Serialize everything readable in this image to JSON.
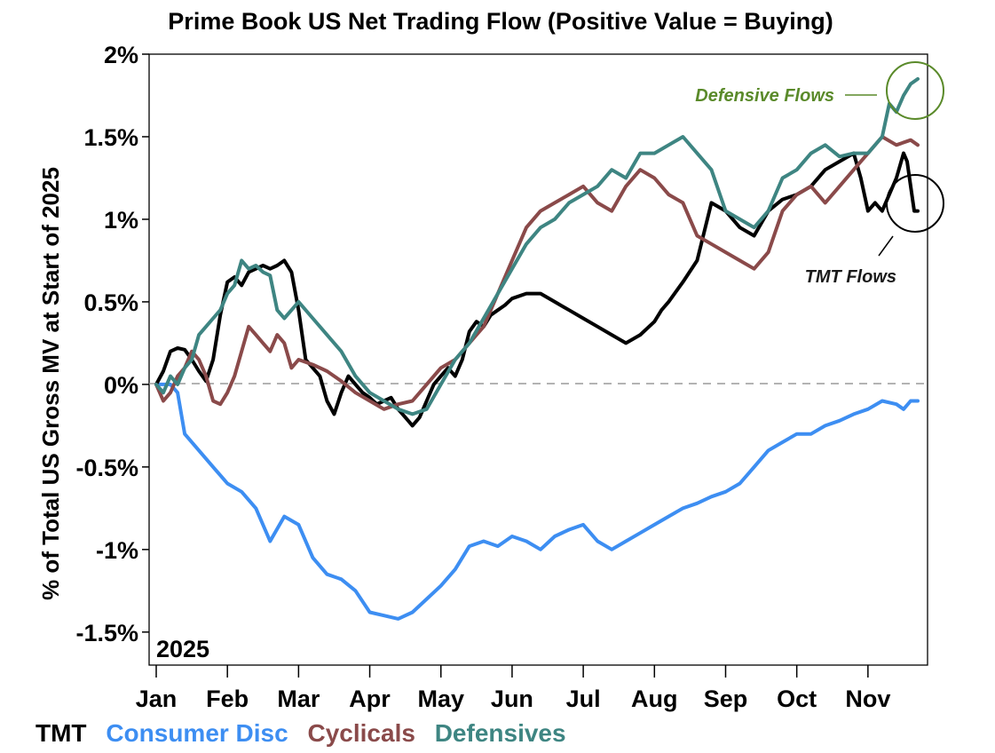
{
  "chart_data": {
    "type": "line",
    "title": "Prime Book US Net Trading Flow (Positive Value = Buying)",
    "ylabel": "% of Total US Gross MV at Start of 2025",
    "xlabel": "",
    "year_label": "2025",
    "categories": [
      "Jan",
      "Feb",
      "Mar",
      "Apr",
      "May",
      "Jun",
      "Jul",
      "Aug",
      "Sep",
      "Oct",
      "Nov"
    ],
    "x_range": [
      0,
      10.75
    ],
    "ylim": [
      -1.7,
      2.0
    ],
    "y_ticks": [
      2,
      1.5,
      1,
      0.5,
      0,
      -0.5,
      -1,
      -1.5
    ],
    "y_tick_labels": [
      "2%",
      "1.5%",
      "1%",
      "0.5%",
      "0%",
      "-0.5%",
      "-1%",
      "-1.5%"
    ],
    "zero_line": true,
    "series": [
      {
        "name": "TMT",
        "color": "#000000",
        "x": [
          0.0,
          0.1,
          0.2,
          0.3,
          0.4,
          0.5,
          0.6,
          0.7,
          0.8,
          0.9,
          1.0,
          1.1,
          1.2,
          1.3,
          1.4,
          1.5,
          1.6,
          1.7,
          1.8,
          1.9,
          2.0,
          2.1,
          2.2,
          2.3,
          2.4,
          2.5,
          2.6,
          2.7,
          2.8,
          2.9,
          3.0,
          3.1,
          3.2,
          3.3,
          3.4,
          3.5,
          3.6,
          3.7,
          3.8,
          3.9,
          4.0,
          4.1,
          4.2,
          4.3,
          4.4,
          4.5,
          4.6,
          4.7,
          4.8,
          4.9,
          5.0,
          5.2,
          5.4,
          5.6,
          5.8,
          6.0,
          6.2,
          6.4,
          6.6,
          6.8,
          7.0,
          7.1,
          7.2,
          7.4,
          7.6,
          7.8,
          8.0,
          8.2,
          8.4,
          8.6,
          8.8,
          9.0,
          9.2,
          9.4,
          9.6,
          9.8,
          9.9,
          10.0,
          10.1,
          10.2,
          10.3,
          10.4,
          10.5,
          10.55,
          10.6,
          10.65,
          10.7
        ],
        "values": [
          0.0,
          0.08,
          0.2,
          0.22,
          0.21,
          0.15,
          0.08,
          0.02,
          0.15,
          0.42,
          0.62,
          0.65,
          0.6,
          0.68,
          0.7,
          0.72,
          0.7,
          0.72,
          0.75,
          0.68,
          0.45,
          0.15,
          0.1,
          0.05,
          -0.1,
          -0.18,
          -0.05,
          0.05,
          0.0,
          -0.05,
          -0.08,
          -0.12,
          -0.1,
          -0.08,
          -0.15,
          -0.2,
          -0.25,
          -0.2,
          -0.1,
          0.0,
          0.05,
          0.1,
          0.05,
          0.15,
          0.32,
          0.38,
          0.35,
          0.42,
          0.45,
          0.48,
          0.52,
          0.55,
          0.55,
          0.5,
          0.45,
          0.4,
          0.35,
          0.3,
          0.25,
          0.3,
          0.38,
          0.45,
          0.5,
          0.62,
          0.75,
          1.1,
          1.05,
          0.95,
          0.9,
          1.05,
          1.12,
          1.15,
          1.2,
          1.3,
          1.35,
          1.4,
          1.25,
          1.05,
          1.1,
          1.05,
          1.15,
          1.25,
          1.4,
          1.35,
          1.2,
          1.05,
          1.05
        ]
      },
      {
        "name": "Consumer Disc",
        "color": "#3d8ef2",
        "x": [
          0.0,
          0.1,
          0.2,
          0.3,
          0.4,
          0.6,
          0.8,
          1.0,
          1.2,
          1.4,
          1.6,
          1.8,
          2.0,
          2.2,
          2.4,
          2.6,
          2.8,
          3.0,
          3.2,
          3.4,
          3.6,
          3.8,
          4.0,
          4.2,
          4.4,
          4.6,
          4.8,
          5.0,
          5.2,
          5.4,
          5.6,
          5.8,
          6.0,
          6.2,
          6.4,
          6.6,
          6.8,
          7.0,
          7.2,
          7.4,
          7.6,
          7.8,
          8.0,
          8.2,
          8.4,
          8.6,
          8.8,
          9.0,
          9.2,
          9.4,
          9.6,
          9.8,
          10.0,
          10.2,
          10.4,
          10.5,
          10.6,
          10.7
        ],
        "values": [
          0.0,
          0.0,
          0.0,
          -0.05,
          -0.3,
          -0.4,
          -0.5,
          -0.6,
          -0.65,
          -0.75,
          -0.95,
          -0.8,
          -0.85,
          -1.05,
          -1.15,
          -1.18,
          -1.25,
          -1.38,
          -1.4,
          -1.42,
          -1.38,
          -1.3,
          -1.22,
          -1.12,
          -0.98,
          -0.95,
          -0.98,
          -0.92,
          -0.95,
          -1.0,
          -0.92,
          -0.88,
          -0.85,
          -0.95,
          -1.0,
          -0.95,
          -0.9,
          -0.85,
          -0.8,
          -0.75,
          -0.72,
          -0.68,
          -0.65,
          -0.6,
          -0.5,
          -0.4,
          -0.35,
          -0.3,
          -0.3,
          -0.25,
          -0.22,
          -0.18,
          -0.15,
          -0.1,
          -0.12,
          -0.15,
          -0.1,
          -0.1
        ]
      },
      {
        "name": "Cyclicals",
        "color": "#8a4a4a",
        "x": [
          0.0,
          0.1,
          0.2,
          0.3,
          0.4,
          0.5,
          0.6,
          0.7,
          0.8,
          0.9,
          1.0,
          1.1,
          1.2,
          1.3,
          1.4,
          1.5,
          1.6,
          1.7,
          1.8,
          1.9,
          2.0,
          2.2,
          2.4,
          2.6,
          2.8,
          3.0,
          3.2,
          3.4,
          3.6,
          3.8,
          4.0,
          4.2,
          4.4,
          4.6,
          4.8,
          5.0,
          5.2,
          5.4,
          5.6,
          5.8,
          6.0,
          6.2,
          6.4,
          6.6,
          6.8,
          7.0,
          7.2,
          7.4,
          7.6,
          7.8,
          8.0,
          8.2,
          8.4,
          8.6,
          8.8,
          9.0,
          9.2,
          9.4,
          9.6,
          9.8,
          10.0,
          10.2,
          10.4,
          10.6,
          10.7
        ],
        "values": [
          0.0,
          -0.1,
          -0.05,
          0.05,
          0.1,
          0.2,
          0.15,
          0.05,
          -0.1,
          -0.12,
          -0.05,
          0.05,
          0.2,
          0.35,
          0.3,
          0.25,
          0.2,
          0.3,
          0.25,
          0.1,
          0.15,
          0.12,
          0.08,
          0.02,
          -0.05,
          -0.1,
          -0.15,
          -0.12,
          -0.1,
          0.0,
          0.1,
          0.15,
          0.25,
          0.35,
          0.55,
          0.75,
          0.95,
          1.05,
          1.1,
          1.15,
          1.2,
          1.1,
          1.05,
          1.2,
          1.3,
          1.25,
          1.15,
          1.1,
          0.9,
          0.85,
          0.8,
          0.75,
          0.7,
          0.8,
          1.05,
          1.15,
          1.2,
          1.1,
          1.2,
          1.3,
          1.4,
          1.5,
          1.45,
          1.48,
          1.45
        ]
      },
      {
        "name": "Defensives",
        "color": "#3e8582",
        "x": [
          0.0,
          0.1,
          0.2,
          0.3,
          0.4,
          0.5,
          0.6,
          0.7,
          0.8,
          0.9,
          1.0,
          1.1,
          1.2,
          1.3,
          1.4,
          1.5,
          1.6,
          1.7,
          1.8,
          1.9,
          2.0,
          2.2,
          2.4,
          2.6,
          2.8,
          3.0,
          3.2,
          3.4,
          3.6,
          3.8,
          4.0,
          4.2,
          4.4,
          4.6,
          4.8,
          5.0,
          5.2,
          5.4,
          5.6,
          5.8,
          6.0,
          6.2,
          6.4,
          6.6,
          6.8,
          7.0,
          7.2,
          7.4,
          7.6,
          7.8,
          8.0,
          8.2,
          8.4,
          8.6,
          8.8,
          9.0,
          9.2,
          9.4,
          9.6,
          9.8,
          10.0,
          10.2,
          10.3,
          10.4,
          10.5,
          10.6,
          10.7
        ],
        "values": [
          0.0,
          -0.05,
          0.05,
          0.0,
          0.1,
          0.15,
          0.3,
          0.35,
          0.4,
          0.45,
          0.55,
          0.6,
          0.75,
          0.7,
          0.72,
          0.68,
          0.66,
          0.45,
          0.4,
          0.45,
          0.5,
          0.4,
          0.3,
          0.2,
          0.05,
          -0.05,
          -0.1,
          -0.15,
          -0.18,
          -0.15,
          0.0,
          0.15,
          0.25,
          0.4,
          0.55,
          0.7,
          0.85,
          0.95,
          1.0,
          1.1,
          1.15,
          1.2,
          1.3,
          1.25,
          1.4,
          1.4,
          1.45,
          1.5,
          1.4,
          1.3,
          1.05,
          1.0,
          0.95,
          1.05,
          1.25,
          1.3,
          1.4,
          1.45,
          1.38,
          1.4,
          1.4,
          1.5,
          1.7,
          1.65,
          1.75,
          1.82,
          1.85
        ]
      }
    ],
    "annotations": [
      {
        "text": "Defensive Flows",
        "color": "#5a8a2a",
        "target_series": "Defensives"
      },
      {
        "text": "TMT Flows",
        "color": "#1a1a1a",
        "target_series": "TMT"
      }
    ],
    "legend": {
      "placement": "bottom-left",
      "entries": [
        {
          "label": "TMT",
          "color": "#000000"
        },
        {
          "label": "Consumer Disc",
          "color": "#3d8ef2"
        },
        {
          "label": "Cyclicals",
          "color": "#8a4a4a"
        },
        {
          "label": "Defensives",
          "color": "#3e8582"
        }
      ]
    }
  }
}
